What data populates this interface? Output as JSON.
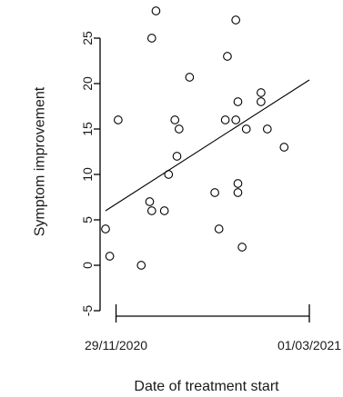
{
  "chart_data": {
    "type": "scatter",
    "title": "",
    "xlabel": "Date of treatment start",
    "ylabel": "Symptom improvement",
    "x_tick_labels": [
      "29/11/2020",
      "01/03/2021"
    ],
    "x_ticks": [
      "2020-11-29",
      "2021-03-01"
    ],
    "xlim": [
      "2020-11-24",
      "2021-03-01"
    ],
    "y_ticks": [
      -5,
      0,
      5,
      10,
      15,
      20,
      25
    ],
    "ylim": [
      -5,
      28
    ],
    "grid": false,
    "legend": "none",
    "marker": "open-circle",
    "color": "#000000",
    "points": [
      {
        "x": "2020-11-24",
        "y": 4
      },
      {
        "x": "2020-11-26",
        "y": 1
      },
      {
        "x": "2020-11-30",
        "y": 16
      },
      {
        "x": "2020-12-11",
        "y": 0
      },
      {
        "x": "2020-12-15",
        "y": 7
      },
      {
        "x": "2020-12-16",
        "y": 6
      },
      {
        "x": "2020-12-16",
        "y": 25
      },
      {
        "x": "2020-12-18",
        "y": 28
      },
      {
        "x": "2020-12-22",
        "y": 6
      },
      {
        "x": "2020-12-24",
        "y": 10
      },
      {
        "x": "2020-12-27",
        "y": 16
      },
      {
        "x": "2020-12-28",
        "y": 12
      },
      {
        "x": "2020-12-29",
        "y": 15
      },
      {
        "x": "2021-01-03",
        "y": 20.7
      },
      {
        "x": "2021-01-15",
        "y": 8
      },
      {
        "x": "2021-01-17",
        "y": 4
      },
      {
        "x": "2021-01-20",
        "y": 16
      },
      {
        "x": "2021-01-21",
        "y": 23
      },
      {
        "x": "2021-01-25",
        "y": 27
      },
      {
        "x": "2021-01-25",
        "y": 16
      },
      {
        "x": "2021-01-26",
        "y": 18
      },
      {
        "x": "2021-01-26",
        "y": 9
      },
      {
        "x": "2021-01-26",
        "y": 8
      },
      {
        "x": "2021-01-28",
        "y": 2
      },
      {
        "x": "2021-01-30",
        "y": 15
      },
      {
        "x": "2021-02-06",
        "y": 19
      },
      {
        "x": "2021-02-06",
        "y": 18
      },
      {
        "x": "2021-02-09",
        "y": 15
      },
      {
        "x": "2021-02-17",
        "y": 13
      }
    ],
    "trend_line": [
      {
        "x": "2020-11-24",
        "y": 6
      },
      {
        "x": "2021-03-01",
        "y": 20.4
      }
    ]
  }
}
